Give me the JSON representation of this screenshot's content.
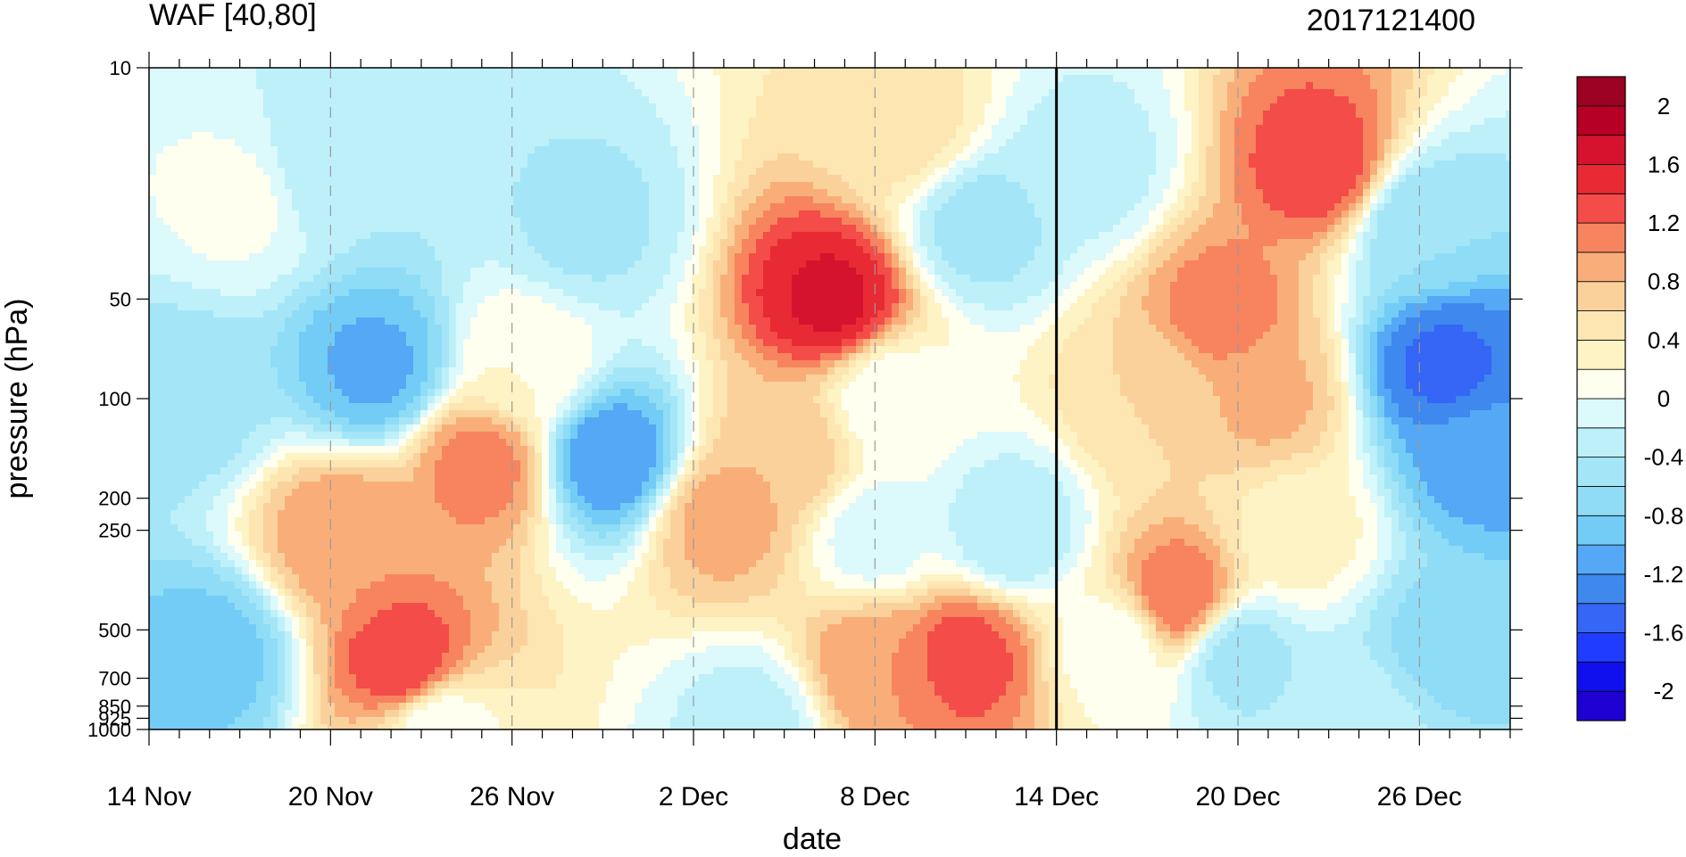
{
  "chart_data": {
    "type": "heatmap",
    "title_left": "WAF [40,80]",
    "title_right": "2017121400",
    "xlabel": "date",
    "ylabel": "pressure (hPa)",
    "x_ticks": [
      {
        "day": 0,
        "label": "14 Nov"
      },
      {
        "day": 6,
        "label": "20 Nov"
      },
      {
        "day": 12,
        "label": "26 Nov"
      },
      {
        "day": 18,
        "label": "2 Dec"
      },
      {
        "day": 24,
        "label": "8 Dec"
      },
      {
        "day": 30,
        "label": "14 Dec"
      },
      {
        "day": 36,
        "label": "20 Dec"
      },
      {
        "day": 42,
        "label": "26 Dec"
      }
    ],
    "x_range_days": [
      0,
      45
    ],
    "y_scale": "log",
    "y_range": [
      1000,
      10
    ],
    "y_ticks": [
      10,
      50,
      100,
      200,
      250,
      500,
      700,
      850,
      925,
      1000
    ],
    "y_tick_labels": [
      "10",
      "50",
      "100",
      "200",
      "250",
      "500",
      "700",
      "850",
      "925",
      "1000"
    ],
    "vertical_marker_day": 30,
    "levels": [
      -2.2,
      -2,
      -1.8,
      -1.6,
      -1.4,
      -1.2,
      -1,
      -0.8,
      -0.6,
      -0.4,
      -0.2,
      0,
      0.2,
      0.4,
      0.6,
      0.8,
      1,
      1.2,
      1.4,
      1.6,
      1.8,
      2,
      2.2
    ],
    "colors": [
      "#1e00d2",
      "#1010ef",
      "#1f3cff",
      "#3566f5",
      "#3f88ee",
      "#55a8f5",
      "#73ccf6",
      "#8fdcf6",
      "#a4e6f7",
      "#bdf0f9",
      "#dcf9fb",
      "#fffff0",
      "#fdf3c4",
      "#fde6b2",
      "#fbd19b",
      "#f9ae79",
      "#f7845e",
      "#f44c48",
      "#e82a34",
      "#d5132e",
      "#b70025",
      "#9c0022"
    ],
    "colorbar_labels": [
      {
        "value": 2,
        "label": "2"
      },
      {
        "value": 1.6,
        "label": "1.6"
      },
      {
        "value": 1.2,
        "label": "1.2"
      },
      {
        "value": 0.8,
        "label": "0.8"
      },
      {
        "value": 0.4,
        "label": "0.4"
      },
      {
        "value": 0,
        "label": "0"
      },
      {
        "value": -0.4,
        "label": "-0.4"
      },
      {
        "value": -0.8,
        "label": "-0.8"
      },
      {
        "value": -1.2,
        "label": "-1.2"
      },
      {
        "value": -1.6,
        "label": "-1.6"
      },
      {
        "value": -2,
        "label": "-2"
      }
    ],
    "field_features": [
      {
        "day": 7.5,
        "p": 80,
        "value": -1.05
      },
      {
        "day": 2,
        "p": 600,
        "value": -0.9
      },
      {
        "day": 1,
        "p": 100,
        "value": -0.55
      },
      {
        "day": 3,
        "p": 25,
        "value": 0.05
      },
      {
        "day": 6,
        "p": 20,
        "value": -0.4
      },
      {
        "day": 6.5,
        "p": 260,
        "value": 1.0
      },
      {
        "day": 8.5,
        "p": 650,
        "value": 1.4
      },
      {
        "day": 11,
        "p": 160,
        "value": 1.1
      },
      {
        "day": 12.5,
        "p": 80,
        "value": 0.2
      },
      {
        "day": 15.3,
        "p": 150,
        "value": -1.2
      },
      {
        "day": 14.5,
        "p": 30,
        "value": -0.45
      },
      {
        "day": 19,
        "p": 230,
        "value": 0.9
      },
      {
        "day": 22.6,
        "p": 50,
        "value": 1.65
      },
      {
        "day": 21,
        "p": 150,
        "value": 0.8
      },
      {
        "day": 25,
        "p": 15,
        "value": 0.5
      },
      {
        "day": 24.5,
        "p": 100,
        "value": 0.05
      },
      {
        "day": 24,
        "p": 260,
        "value": -0.1
      },
      {
        "day": 24,
        "p": 650,
        "value": 1.0
      },
      {
        "day": 27,
        "p": 600,
        "value": 1.3
      },
      {
        "day": 27.5,
        "p": 30,
        "value": -0.5
      },
      {
        "day": 28.5,
        "p": 250,
        "value": -0.4
      },
      {
        "day": 31,
        "p": 20,
        "value": -0.3
      },
      {
        "day": 33,
        "p": 100,
        "value": 0.6
      },
      {
        "day": 34,
        "p": 400,
        "value": 1.2
      },
      {
        "day": 32,
        "p": 550,
        "value": 0.05
      },
      {
        "day": 35.5,
        "p": 55,
        "value": 1.1
      },
      {
        "day": 37,
        "p": 100,
        "value": 0.85
      },
      {
        "day": 38.8,
        "p": 20,
        "value": 1.35
      },
      {
        "day": 36,
        "p": 600,
        "value": -0.5
      },
      {
        "day": 38,
        "p": 250,
        "value": 0.3
      },
      {
        "day": 42.8,
        "p": 80,
        "value": -1.45
      },
      {
        "day": 44,
        "p": 150,
        "value": -1.1
      },
      {
        "day": 42,
        "p": 30,
        "value": -0.6
      },
      {
        "day": 43,
        "p": 550,
        "value": -0.7
      },
      {
        "day": 9.5,
        "p": 960,
        "value": 0.05
      },
      {
        "day": 20,
        "p": 960,
        "value": -0.3
      },
      {
        "day": 40,
        "p": 960,
        "value": -0.3
      }
    ]
  }
}
